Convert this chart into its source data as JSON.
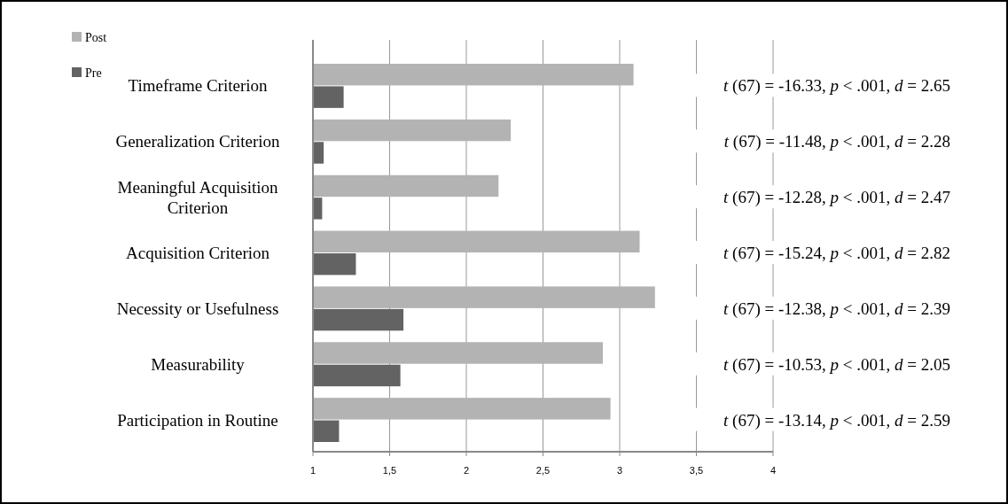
{
  "chart_data": {
    "type": "bar",
    "orientation": "horizontal",
    "categories": [
      "Timeframe Criterion",
      "Generalization Criterion",
      "Meaningful Acquisition Criterion",
      "Acquisition Criterion",
      "Necessity or Usefulness",
      "Measurability",
      "Participation in Routine"
    ],
    "series": [
      {
        "name": "Post",
        "color": "#b3b3b3",
        "values": [
          3.09,
          2.29,
          2.21,
          3.13,
          3.23,
          2.89,
          2.94
        ]
      },
      {
        "name": "Pre",
        "color": "#636363",
        "values": [
          1.2,
          1.07,
          1.06,
          1.28,
          1.59,
          1.57,
          1.17
        ]
      }
    ],
    "xlim": [
      1,
      4
    ],
    "xticks": [
      1,
      {
        "value": 1.5,
        "label": "1,5"
      },
      2,
      {
        "value": 2.5,
        "label": "2,5"
      },
      3,
      {
        "value": 3.5,
        "label": "3,5"
      },
      4
    ],
    "grid": "x",
    "legend": "top left",
    "annotations": [
      "t (67) = -16.33, p < .001, d = 2.65",
      "t (67) = -11.48, p < .001, d = 2.28",
      "t (67) = -12.28, p < .001, d = 2.47",
      "t (67) = -15.24, p < .001, d = 2.82",
      "t (67) = -12.38, p < .001, d = 2.39",
      "t (67) = -10.53, p < .001, d = 2.05",
      "t (67) = -13.14, p < .001, d = 2.59"
    ]
  }
}
